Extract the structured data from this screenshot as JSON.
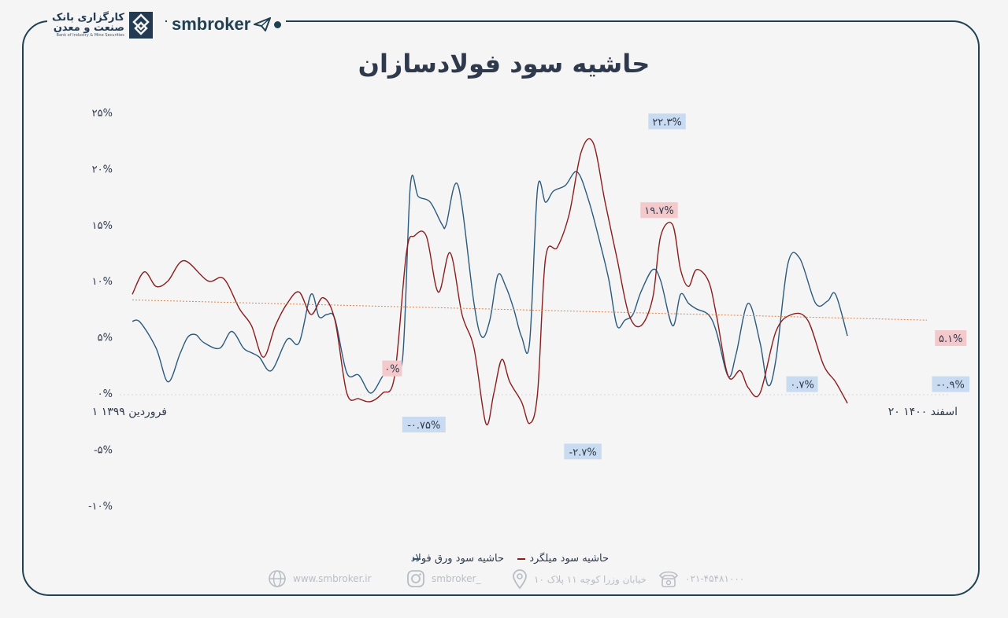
{
  "header": {
    "bank_name_line1": "کارگزاری بانک",
    "bank_name_line2": "صنعت و معدن",
    "bank_name_en": "Bank of Industry & Mine Securities",
    "brand": "smbroker"
  },
  "footer": {
    "website": "www.smbroker.ir",
    "instagram": "smbroker_",
    "address": "خیابان وزرا کوچه ۱۱ پلاک ۱۰",
    "phone": "۰۲۱-۴۵۴۸۱۰۰۰"
  },
  "colors": {
    "rebar": "#8b1d1d",
    "sheet": "#2b5a7d",
    "trend": "#e0824a",
    "frame": "#1f4152",
    "label_blue_bg": "#c9dbf0",
    "label_red_bg": "#f3c9cc"
  },
  "chart_data": {
    "type": "line",
    "title": "حاشیه سود فولادسازان",
    "x_start_label": "۱ فروردین ۱۳۹۹",
    "x_end_label": "۲۰ اسفند ۱۴۰۰",
    "ylim": [
      -10,
      25
    ],
    "yticks": [
      25,
      20,
      15,
      10,
      5,
      0,
      -5,
      -10
    ],
    "ytick_labels": [
      "۲۵%",
      "۲۰%",
      "۱۵%",
      "۱۰%",
      "۵%",
      "۰%",
      "-۵%",
      "-۱۰%"
    ],
    "grid": false,
    "legend": "bottom",
    "legend_order": [
      "حاشیه سود میلگرد",
      "حاشیه سود ورق فولاد"
    ],
    "series": [
      {
        "name": "حاشیه سود ورق فولاد",
        "color": "#2b5a7d",
        "x": [
          0,
          0.01,
          0.03,
          0.045,
          0.06,
          0.07,
          0.08,
          0.09,
          0.11,
          0.125,
          0.14,
          0.15,
          0.16,
          0.175,
          0.195,
          0.21,
          0.225,
          0.235,
          0.245,
          0.255,
          0.27,
          0.285,
          0.3,
          0.315,
          0.325,
          0.34,
          0.35,
          0.36,
          0.375,
          0.39,
          0.395,
          0.41,
          0.43,
          0.44,
          0.45,
          0.46,
          0.47,
          0.48,
          0.49,
          0.5,
          0.51,
          0.52,
          0.53,
          0.545,
          0.56,
          0.575,
          0.59,
          0.6,
          0.61,
          0.62,
          0.63,
          0.64,
          0.655,
          0.665,
          0.68,
          0.69,
          0.7,
          0.71,
          0.725,
          0.735,
          0.75,
          0.76,
          0.775,
          0.79,
          0.8,
          0.81,
          0.825,
          0.84,
          0.86,
          0.875,
          0.885,
          0.9,
          0.915,
          0.925,
          0.94,
          0.95,
          0.96,
          0.975,
          0.985,
          1
        ],
        "values": [
          6.4,
          6.3,
          4.0,
          1.0,
          3.5,
          5.0,
          5.2,
          4.5,
          4.0,
          5.5,
          4.0,
          3.6,
          3.2,
          2.0,
          4.8,
          4.5,
          8.8,
          6.8,
          7.0,
          6.6,
          1.8,
          1.6,
          0,
          1.5,
          2.5,
          3.0,
          18.5,
          17.5,
          17.0,
          15.0,
          15.0,
          18.5,
          8.0,
          5.0,
          6.5,
          10.5,
          9.5,
          7.5,
          5.0,
          4.5,
          18.2,
          17.0,
          18.0,
          18.5,
          19.7,
          17.0,
          13.0,
          10.0,
          6.0,
          6.5,
          7.0,
          9.0,
          11.0,
          10.0,
          6.0,
          8.8,
          8.0,
          7.5,
          7.0,
          5.5,
          1.5,
          3.5,
          8.0,
          4.5,
          0.7,
          3.0,
          11.5,
          12.0,
          8.0,
          8.2,
          8.8,
          5.1,
          5.1,
          5.1,
          5.1,
          5.1,
          5.1,
          5.1,
          5.1,
          5.1
        ]
      },
      {
        "name": "حاشیه سود میلگرد",
        "color": "#8b1d1d",
        "x": [
          0,
          0.015,
          0.03,
          0.045,
          0.065,
          0.095,
          0.115,
          0.135,
          0.15,
          0.165,
          0.18,
          0.195,
          0.21,
          0.225,
          0.24,
          0.255,
          0.27,
          0.285,
          0.3,
          0.315,
          0.33,
          0.345,
          0.355,
          0.37,
          0.385,
          0.4,
          0.415,
          0.43,
          0.445,
          0.455,
          0.465,
          0.475,
          0.49,
          0.5,
          0.51,
          0.52,
          0.535,
          0.55,
          0.565,
          0.58,
          0.595,
          0.61,
          0.625,
          0.64,
          0.655,
          0.665,
          0.68,
          0.69,
          0.7,
          0.71,
          0.725,
          0.735,
          0.75,
          0.765,
          0.775,
          0.79,
          0.81,
          0.83,
          0.85,
          0.87,
          0.885,
          0.9,
          0.915,
          0.925,
          0.935,
          0.95,
          0.965,
          0.98,
          1
        ],
        "values": [
          8.8,
          10.8,
          9.5,
          10.0,
          11.8,
          10.0,
          10.2,
          7.5,
          6.0,
          3.2,
          6.0,
          8.0,
          9.0,
          7.0,
          8.5,
          6.5,
          0,
          -0.5,
          -0.75,
          0,
          1.5,
          12.5,
          14.0,
          14.0,
          9.0,
          12.5,
          7.0,
          4.0,
          -2.7,
          0,
          3.0,
          1.0,
          -0.8,
          -2.7,
          0,
          12.0,
          13.0,
          16.0,
          21.5,
          22.3,
          17.0,
          12.0,
          7.0,
          6.0,
          8.5,
          14.0,
          15.0,
          11.0,
          9.5,
          11.0,
          10.0,
          7.0,
          1.5,
          2.0,
          0.5,
          0,
          5.5,
          7.0,
          6.5,
          2.5,
          1.0,
          -0.9,
          -0.9,
          -0.9,
          -0.9,
          -0.9,
          -0.9,
          -0.9,
          -0.9
        ]
      },
      {
        "name": "trend",
        "color": "#e0824a",
        "x": [
          0,
          1
        ],
        "values": [
          8.3,
          6.5
        ]
      }
    ],
    "annotations": [
      {
        "text": "۲۲.۳%",
        "series": "rebar",
        "x": 0.673,
        "y": 24.2,
        "style": "blue"
      },
      {
        "text": "۱۹.۷%",
        "series": "sheet",
        "x": 0.663,
        "y": 16.3,
        "style": "red"
      },
      {
        "text": "۰%",
        "series": "rebar",
        "x": 0.327,
        "y": 2.2,
        "style": "red"
      },
      {
        "text": "-۰.۷۵%",
        "series": "rebar",
        "x": 0.367,
        "y": -2.8,
        "style": "blue"
      },
      {
        "text": "-۲.۷%",
        "series": "rebar",
        "x": 0.567,
        "y": -5.2,
        "style": "blue"
      },
      {
        "text": "۰.۷%",
        "series": "sheet",
        "x": 0.843,
        "y": 0.8,
        "style": "blue"
      },
      {
        "text": "۵.۱%",
        "series": "sheet",
        "x": 1.03,
        "y": 4.9,
        "style": "red"
      },
      {
        "text": "-۰.۹%",
        "series": "rebar",
        "x": 1.03,
        "y": 0.8,
        "style": "blue"
      }
    ]
  }
}
